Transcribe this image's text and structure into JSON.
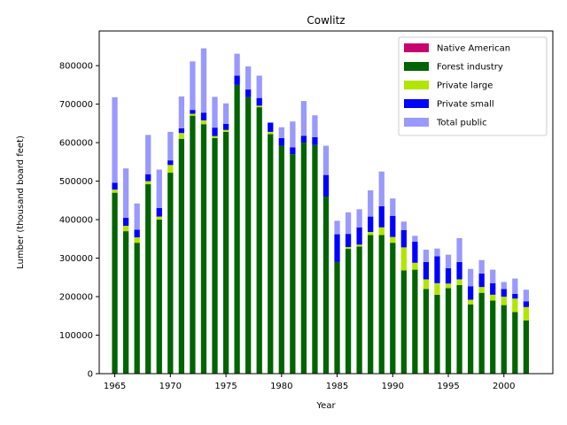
{
  "chart_data": {
    "type": "bar",
    "stacked": true,
    "title": "Cowlitz",
    "xlabel": "Year",
    "ylabel": "Lumber (thousand board feet)",
    "xlim": [
      1963.6,
      2004.4
    ],
    "ylim": [
      0,
      890000
    ],
    "xticks": [
      1965,
      1970,
      1975,
      1980,
      1985,
      1990,
      1995,
      2000
    ],
    "yticks": [
      0,
      100000,
      200000,
      300000,
      400000,
      500000,
      600000,
      700000,
      800000
    ],
    "legend_position": "top-right",
    "x": [
      1965,
      1966,
      1967,
      1968,
      1969,
      1970,
      1971,
      1972,
      1973,
      1974,
      1975,
      1976,
      1977,
      1978,
      1979,
      1980,
      1981,
      1982,
      1983,
      1984,
      1985,
      1986,
      1987,
      1988,
      1989,
      1990,
      1991,
      1992,
      1993,
      1994,
      1995,
      1996,
      1997,
      1998,
      1999,
      2000,
      2001,
      2002
    ],
    "series": [
      {
        "name": "Native American",
        "color": "#c8006e",
        "values": [
          0,
          0,
          0,
          0,
          0,
          0,
          0,
          0,
          0,
          0,
          0,
          0,
          0,
          0,
          0,
          0,
          0,
          0,
          0,
          0,
          0,
          0,
          0,
          0,
          0,
          0,
          0,
          0,
          0,
          0,
          0,
          0,
          0,
          0,
          0,
          0,
          0,
          0
        ]
      },
      {
        "name": "Forest industry",
        "color": "#006400",
        "values": [
          470000,
          370000,
          340000,
          492000,
          400000,
          522000,
          610000,
          670000,
          648000,
          612000,
          628000,
          750000,
          718000,
          692000,
          622000,
          592000,
          570000,
          600000,
          594000,
          460000,
          290000,
          324000,
          330000,
          360000,
          360000,
          340000,
          268000,
          270000,
          220000,
          205000,
          222000,
          230000,
          180000,
          210000,
          190000,
          178000,
          160000,
          138000
        ]
      },
      {
        "name": "Private large",
        "color": "#b2e600",
        "values": [
          8000,
          14000,
          14000,
          8000,
          8000,
          20000,
          15000,
          5000,
          10000,
          5000,
          5000,
          0,
          0,
          4000,
          6000,
          0,
          0,
          0,
          0,
          0,
          0,
          5000,
          5000,
          8000,
          20000,
          15000,
          60000,
          18000,
          25000,
          30000,
          12000,
          15000,
          12000,
          15000,
          15000,
          22000,
          35000,
          35000
        ]
      },
      {
        "name": "Private small",
        "color": "#0000ff",
        "values": [
          18000,
          21000,
          20000,
          18000,
          22000,
          12000,
          12000,
          10000,
          20000,
          22000,
          16000,
          24000,
          20000,
          20000,
          24000,
          20000,
          18000,
          18000,
          20000,
          56000,
          72000,
          34000,
          45000,
          40000,
          55000,
          55000,
          45000,
          55000,
          45000,
          70000,
          40000,
          45000,
          35000,
          35000,
          30000,
          20000,
          12000,
          15000
        ]
      },
      {
        "name": "Total public",
        "color": "#9999ff",
        "values": [
          222000,
          128000,
          68000,
          102000,
          100000,
          74000,
          83000,
          126000,
          167000,
          80000,
          53000,
          57000,
          60000,
          58000,
          0,
          28000,
          67000,
          90000,
          57000,
          76000,
          35000,
          56000,
          47000,
          68000,
          90000,
          45000,
          22000,
          15000,
          32000,
          20000,
          35000,
          62000,
          45000,
          35000,
          35000,
          18000,
          40000,
          30000
        ]
      }
    ]
  }
}
